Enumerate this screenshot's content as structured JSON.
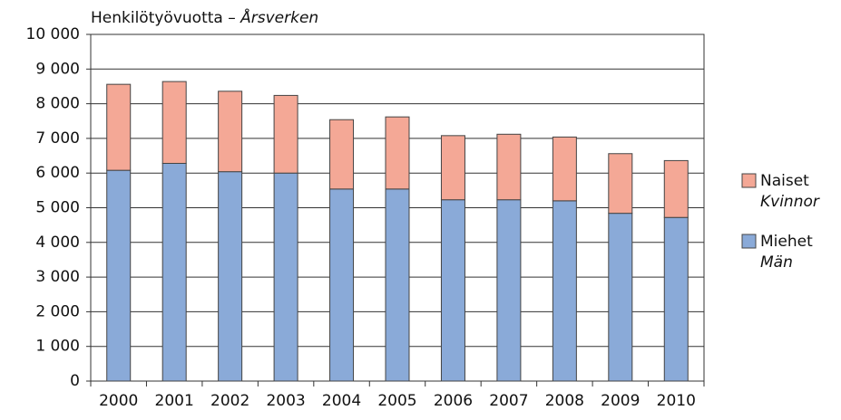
{
  "chart_data": {
    "type": "stacked_bar",
    "title": {
      "fi": "Henkilötyövuotta –",
      "sv": "Årsverken"
    },
    "categories": [
      "2000",
      "2001",
      "2002",
      "2003",
      "2004",
      "2005",
      "2006",
      "2007",
      "2008",
      "2009",
      "2010"
    ],
    "series": [
      {
        "name": "Miehet",
        "name_sv": "Män",
        "color": "#8aaad8",
        "values": [
          6080,
          6280,
          6040,
          6000,
          5540,
          5540,
          5230,
          5230,
          5200,
          4840,
          4720
        ]
      },
      {
        "name": "Naiset",
        "name_sv": "Kvinnor",
        "color": "#f4a896",
        "values": [
          2480,
          2360,
          2320,
          2240,
          2000,
          2080,
          1850,
          1890,
          1840,
          1720,
          1640
        ]
      }
    ],
    "ylim": [
      0,
      10000
    ],
    "yticks": [
      0,
      {
        "value": 1000,
        "label": "1 000"
      },
      {
        "value": 2000,
        "label": "2 000"
      },
      {
        "value": 3000,
        "label": "3 000"
      },
      {
        "value": 4000,
        "label": "4 000"
      },
      {
        "value": 5000,
        "label": "5 000"
      },
      {
        "value": 6000,
        "label": "6 000"
      },
      {
        "value": 7000,
        "label": "7 000"
      },
      {
        "value": 8000,
        "label": "8 000"
      },
      {
        "value": 9000,
        "label": "9 000"
      },
      {
        "value": 10000,
        "label": "10 000"
      }
    ],
    "grid": true,
    "legend": "right"
  }
}
